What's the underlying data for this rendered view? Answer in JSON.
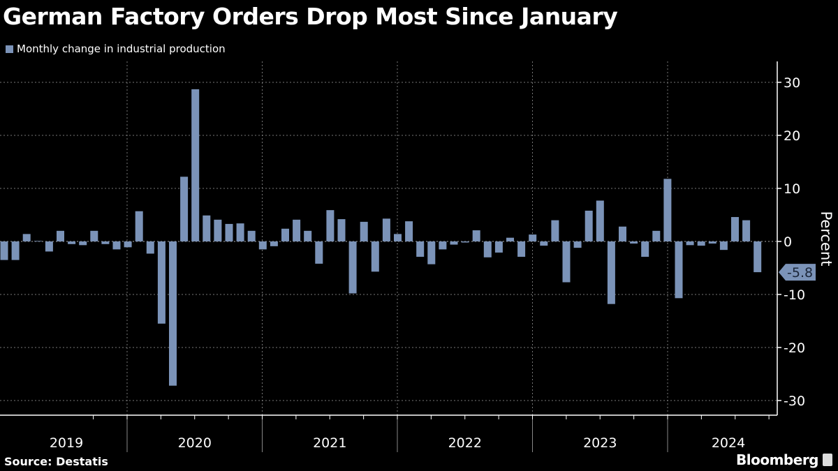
{
  "title": "German Factory Orders Drop Most Since January",
  "source": "Source: Destatis",
  "brand": "Bloomberg",
  "colors": {
    "bar": "#7b93b8",
    "background": "#000000",
    "grid": "#777777"
  },
  "chart_data": {
    "type": "bar",
    "title": "German Factory Orders Drop Most Since January",
    "legend": [
      "Monthly change in industrial production"
    ],
    "legend_position": "top-left",
    "ylabel": "Percent",
    "xlabel": "",
    "ylim": [
      -33,
      34
    ],
    "yticks": [
      30,
      20,
      10,
      0,
      -10,
      -20,
      -30
    ],
    "ytick_labels": [
      "30",
      "20",
      "10",
      "0",
      "-10",
      "-20",
      "-30"
    ],
    "year_labels": [
      "2019",
      "2020",
      "2021",
      "2022",
      "2023",
      "2024"
    ],
    "start": "2019-01",
    "end": "2024-08",
    "grid": true,
    "last_value_label": "-5.8",
    "values": [
      -3.5,
      -3.5,
      1.4,
      0.1,
      -1.9,
      2.0,
      -0.5,
      -0.7,
      2.0,
      -0.5,
      -1.5,
      -1.1,
      5.7,
      -2.3,
      -15.5,
      -27.2,
      12.2,
      28.7,
      4.9,
      4.1,
      3.3,
      3.4,
      2.0,
      -1.5,
      -0.9,
      2.4,
      4.1,
      2.0,
      -4.2,
      5.9,
      4.2,
      -9.8,
      3.7,
      -5.7,
      4.3,
      1.4,
      3.8,
      -2.9,
      -4.3,
      -1.5,
      -0.6,
      -0.2,
      2.1,
      -3.0,
      -2.1,
      0.7,
      -2.9,
      1.3,
      -0.8,
      4.0,
      -7.7,
      -1.2,
      5.8,
      7.7,
      -11.8,
      2.8,
      -0.4,
      -2.9,
      2.0,
      11.8,
      -10.7,
      -0.7,
      -0.8,
      -0.4,
      -1.6,
      4.6,
      4.0,
      -5.8
    ]
  }
}
